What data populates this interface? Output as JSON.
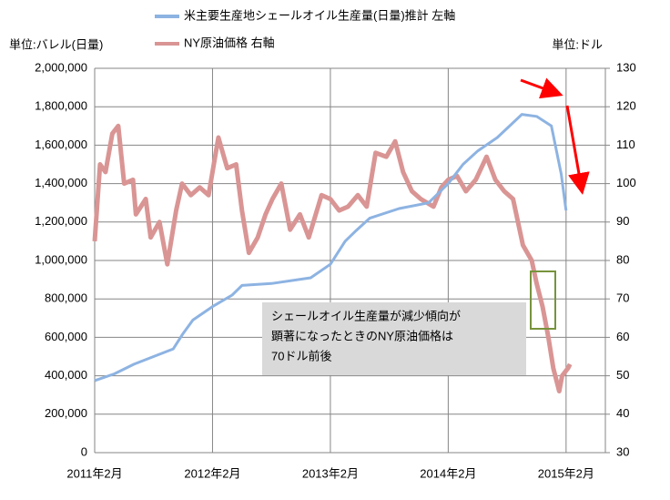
{
  "chart_data": {
    "type": "line",
    "legend_title_1": "米主要生産地シェールオイル生産量(日量)推計 左軸",
    "y_label": "単位:バレル(日量)",
    "y2_label": "単位:ドル",
    "xlim": [
      0,
      52
    ],
    "xticks": [
      {
        "value": 0,
        "label": "2011年2月"
      },
      {
        "value": 12,
        "label": "2012年2月"
      },
      {
        "value": 24,
        "label": "2013年2月"
      },
      {
        "value": 36,
        "label": "2014年2月"
      },
      {
        "value": 48,
        "label": "2015年2月"
      }
    ],
    "ylim": [
      0,
      2000000
    ],
    "yticks": [
      0,
      {
        "value": 200000,
        "label": "200,000"
      },
      {
        "value": 400000,
        "label": "400,000"
      },
      {
        "value": 600000,
        "label": "600,000"
      },
      {
        "value": 800000,
        "label": "800,000"
      },
      {
        "value": 1000000,
        "label": "1,000,000"
      },
      {
        "value": 1200000,
        "label": "1,200,000"
      },
      {
        "value": 1400000,
        "label": "1,400,000"
      },
      {
        "value": 1600000,
        "label": "1,600,000"
      },
      {
        "value": 1800000,
        "label": "1,800,000"
      },
      {
        "value": 2000000,
        "label": "2,000,000"
      }
    ],
    "y2lim": [
      30,
      130
    ],
    "y2ticks": [
      30,
      40,
      50,
      60,
      70,
      80,
      90,
      100,
      110,
      120,
      130
    ],
    "grid": true,
    "series": [
      {
        "name": "米主要生産地シェールオイル生産量(日量)推計 左軸",
        "color": "#8db3e2",
        "x": [
          0,
          2,
          4,
          6,
          8,
          9,
          10,
          12,
          14,
          15,
          18,
          22,
          24,
          25.5,
          26.5,
          28,
          31,
          34,
          36,
          37.5,
          39,
          41,
          43.5,
          45,
          46.5,
          47.5,
          48
        ],
        "values": [
          375000,
          410000,
          460000,
          500000,
          540000,
          620000,
          690000,
          760000,
          820000,
          870000,
          880000,
          910000,
          980000,
          1100000,
          1150000,
          1220000,
          1270000,
          1300000,
          1400000,
          1500000,
          1570000,
          1640000,
          1760000,
          1750000,
          1700000,
          1450000,
          1260000
        ]
      },
      {
        "name": "NY原油価格 右軸",
        "color": "#d99594",
        "axis": "y2",
        "x": [
          0,
          0.55,
          1.1,
          1.8,
          2.4,
          3,
          3.9,
          4.2,
          5.2,
          5.7,
          6.6,
          7.4,
          8.3,
          8.9,
          9.8,
          10.7,
          11.6,
          12.6,
          13.5,
          14.4,
          15,
          15.7,
          16.6,
          17.4,
          18.1,
          19,
          19.9,
          20.9,
          21.8,
          23.1,
          24,
          24.9,
          25.8,
          26.8,
          27.7,
          28.6,
          29.7,
          30.6,
          31.4,
          32.3,
          33.2,
          34.5,
          35.3,
          36,
          36.9,
          37.8,
          38.8,
          39.9,
          40.8,
          41.7,
          42.6,
          43.6,
          44.5,
          45,
          45.6,
          46.2,
          46.7,
          47.3,
          47.6,
          48.2,
          48.4
        ],
        "values": [
          85,
          105,
          103,
          113,
          115,
          100,
          101,
          92,
          96,
          86,
          90,
          79,
          93,
          100,
          97,
          99,
          97,
          112,
          104,
          105,
          93,
          82,
          86,
          92,
          96,
          100,
          88,
          92,
          86,
          97,
          96,
          93,
          94,
          97,
          94,
          108,
          107,
          111,
          103,
          98,
          96,
          94,
          99,
          101,
          102,
          98,
          101,
          107,
          101,
          98,
          96,
          84,
          80,
          74,
          68,
          60,
          52,
          46,
          50,
          52,
          53
        ]
      }
    ],
    "annotation": [
      "シェールオイル生産量が減少傾向が",
      "顕著になったときのNY原油価格は",
      "70ドル前後"
    ]
  }
}
